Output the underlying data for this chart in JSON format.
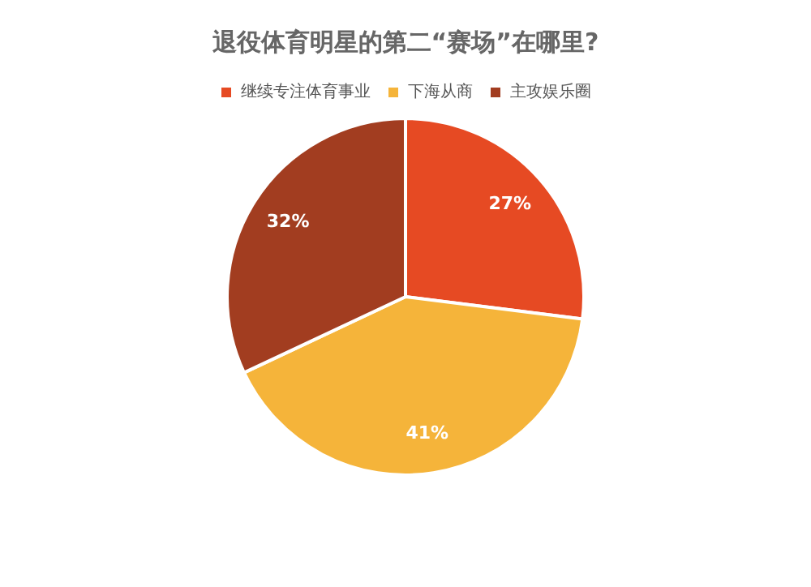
{
  "chart_data": {
    "type": "pie",
    "title": "退役体育明星的第二“赛场”在哪里?",
    "categories": [
      "继续专注体育事业",
      "下海从商",
      "主攻娱乐圈"
    ],
    "values": [
      27,
      41,
      32
    ],
    "colors": [
      "#e64a23",
      "#f5b43a",
      "#a23d20"
    ],
    "value_labels": [
      "27%",
      "41%",
      "32%"
    ],
    "legend": "top"
  }
}
